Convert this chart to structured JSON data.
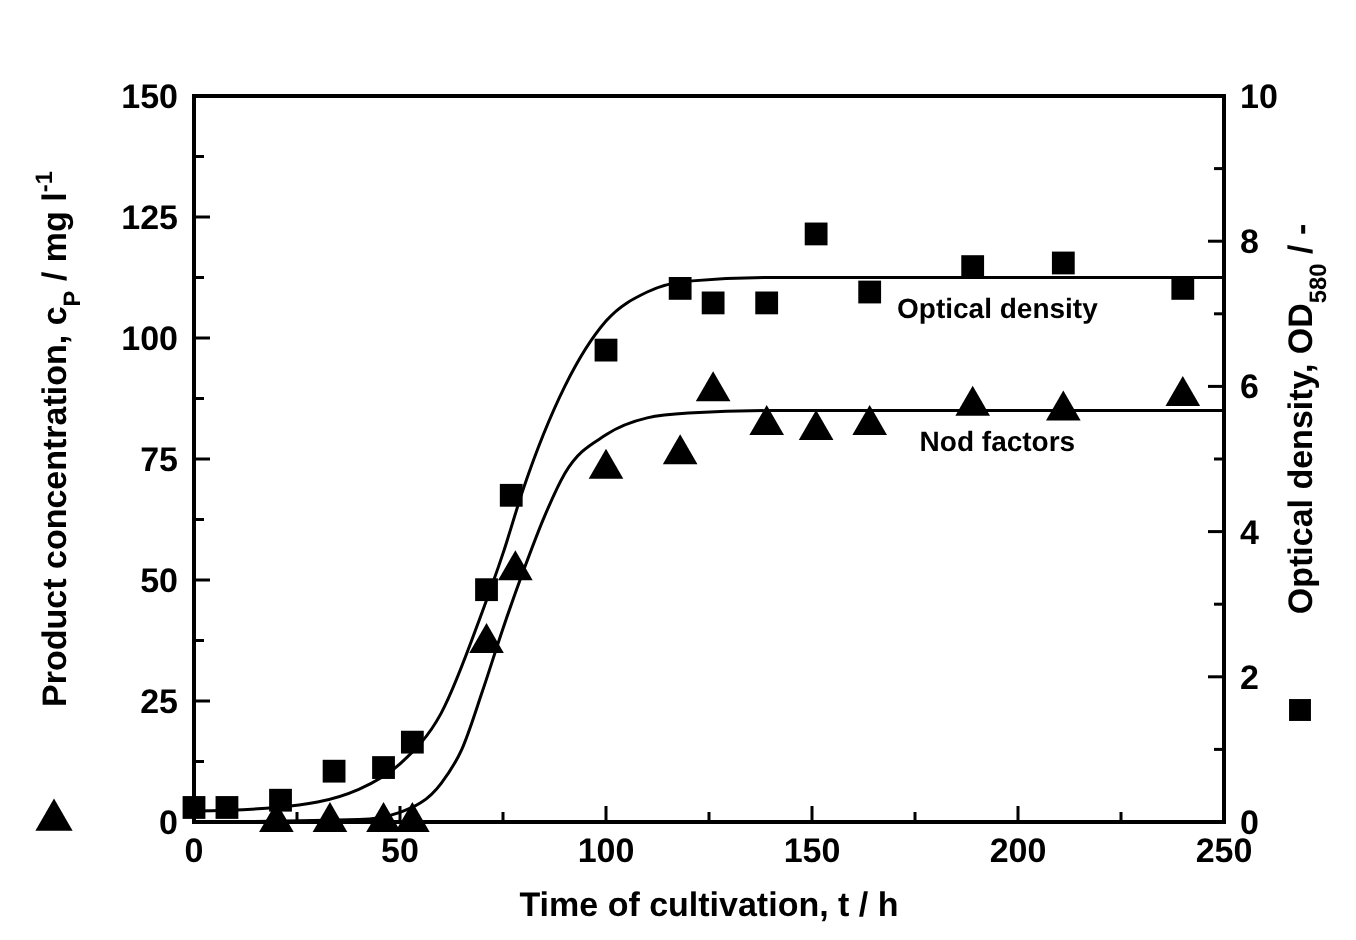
{
  "chart_data": {
    "type": "scatter",
    "xlabel": "Time of cultivation, t / h",
    "ylabel": "Product concentration, c$_{P}$ / mg l$^{-1}$",
    "y2label": "Optical density, OD$_{580}$ / -",
    "xlim": [
      0,
      250
    ],
    "xticks": [
      0,
      {
        "value": 25,
        "label": null
      },
      50,
      {
        "value": 75,
        "label": null
      },
      100,
      {
        "value": 125,
        "label": null
      },
      150,
      {
        "value": 175,
        "label": null
      },
      200,
      {
        "value": 225,
        "label": null
      },
      250
    ],
    "ylim": [
      0,
      150
    ],
    "yticks": [
      0,
      {
        "value": 12.5,
        "label": null
      },
      25,
      {
        "value": 37.5,
        "label": null
      },
      50,
      {
        "value": 62.5,
        "label": null
      },
      75,
      {
        "value": 87.5,
        "label": null
      },
      100,
      {
        "value": 112.5,
        "label": null
      },
      125,
      {
        "value": 137.5,
        "label": null
      },
      150
    ],
    "y2lim": [
      0,
      10
    ],
    "y2ticks": [
      0,
      {
        "value": 1,
        "label": null
      },
      2,
      {
        "value": 3,
        "label": null
      },
      4,
      {
        "value": 5,
        "label": null
      },
      6,
      {
        "value": 7,
        "label": null
      },
      8,
      {
        "value": 9,
        "label": null
      },
      10
    ],
    "grid": false,
    "series": [
      {
        "name": "Nod factors",
        "marker": "triangle",
        "color": "#000000",
        "x": [
          20,
          33,
          46,
          53,
          71,
          78,
          100,
          118,
          126,
          139,
          151,
          164,
          189,
          211,
          240
        ],
        "values": [
          0,
          0,
          0,
          0,
          37,
          52,
          73,
          76,
          89,
          82,
          81,
          82,
          86,
          85,
          88
        ]
      },
      {
        "type": "line",
        "color": "#000000",
        "x": [
          0,
          40,
          50,
          60,
          65,
          70,
          75,
          80,
          85,
          90,
          100,
          110,
          120,
          140,
          250
        ],
        "values": [
          0,
          0.5,
          2,
          8,
          15,
          27,
          40,
          52,
          63,
          72,
          80,
          83.5,
          84.5,
          85,
          85
        ]
      },
      {
        "name": "Optical density",
        "marker": "square",
        "axis": "y2",
        "color": "#000000",
        "x": [
          0,
          8,
          21,
          34,
          46,
          53,
          71,
          77,
          100,
          118,
          126,
          139,
          151,
          164,
          189,
          211,
          240
        ],
        "values": [
          0.2,
          0.2,
          0.3,
          0.7,
          0.75,
          1.1,
          3.2,
          4.5,
          6.5,
          7.35,
          7.15,
          7.15,
          8.1,
          7.3,
          7.65,
          7.7,
          7.35
        ]
      },
      {
        "type": "line",
        "axis": "y2",
        "color": "#000000",
        "x": [
          0,
          20,
          40,
          50,
          60,
          70,
          75,
          80,
          90,
          100,
          110,
          120,
          140,
          250
        ],
        "values": [
          0.15,
          0.2,
          0.45,
          0.8,
          1.5,
          2.9,
          3.7,
          4.6,
          6.0,
          6.9,
          7.3,
          7.45,
          7.5,
          7.5
        ]
      }
    ]
  }
}
